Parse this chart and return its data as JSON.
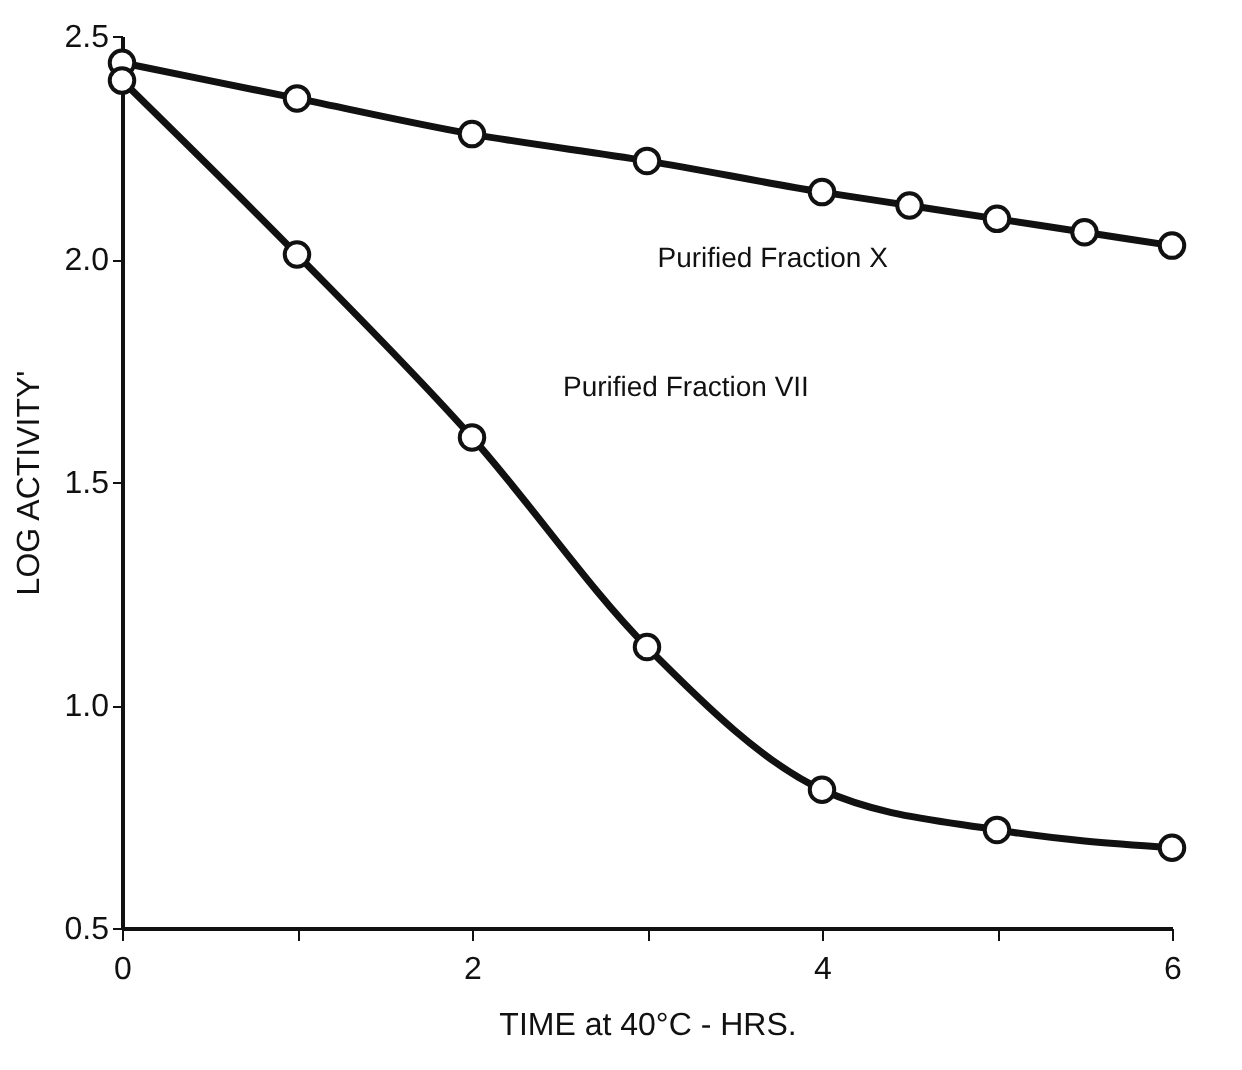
{
  "chart_data": {
    "type": "line",
    "xlabel": "TIME at 40°C - HRS.",
    "ylabel": "LOG ACTIVITY'",
    "xlim": [
      0,
      6
    ],
    "ylim": [
      0.5,
      2.5
    ],
    "xticks": [
      0,
      {
        "value": 1,
        "label": null
      },
      2,
      {
        "value": 3,
        "label": null
      },
      4,
      {
        "value": 5,
        "label": null
      },
      6
    ],
    "yticks": [
      0.5,
      {
        "value": 1,
        "label": "1.0"
      },
      1.5,
      {
        "value": 2,
        "label": "2.0"
      },
      2.5
    ],
    "grid": false,
    "marker": "circle",
    "line_style": "solid",
    "series": [
      {
        "color": "#111111",
        "x": [
          0,
          1,
          2,
          3,
          4,
          4.5,
          5,
          5.5,
          6
        ],
        "values": [
          2.44,
          2.36,
          2.28,
          2.22,
          2.15,
          2.12,
          2.09,
          2.06,
          2.03
        ]
      },
      {
        "color": "#111111",
        "x": [
          0,
          1,
          2,
          3,
          4,
          5,
          6
        ],
        "values": [
          2.4,
          2.01,
          1.6,
          1.13,
          0.81,
          0.72,
          0.68
        ]
      }
    ],
    "annotations": [
      "Purified Fraction X",
      "Purified Fraction VII"
    ]
  }
}
